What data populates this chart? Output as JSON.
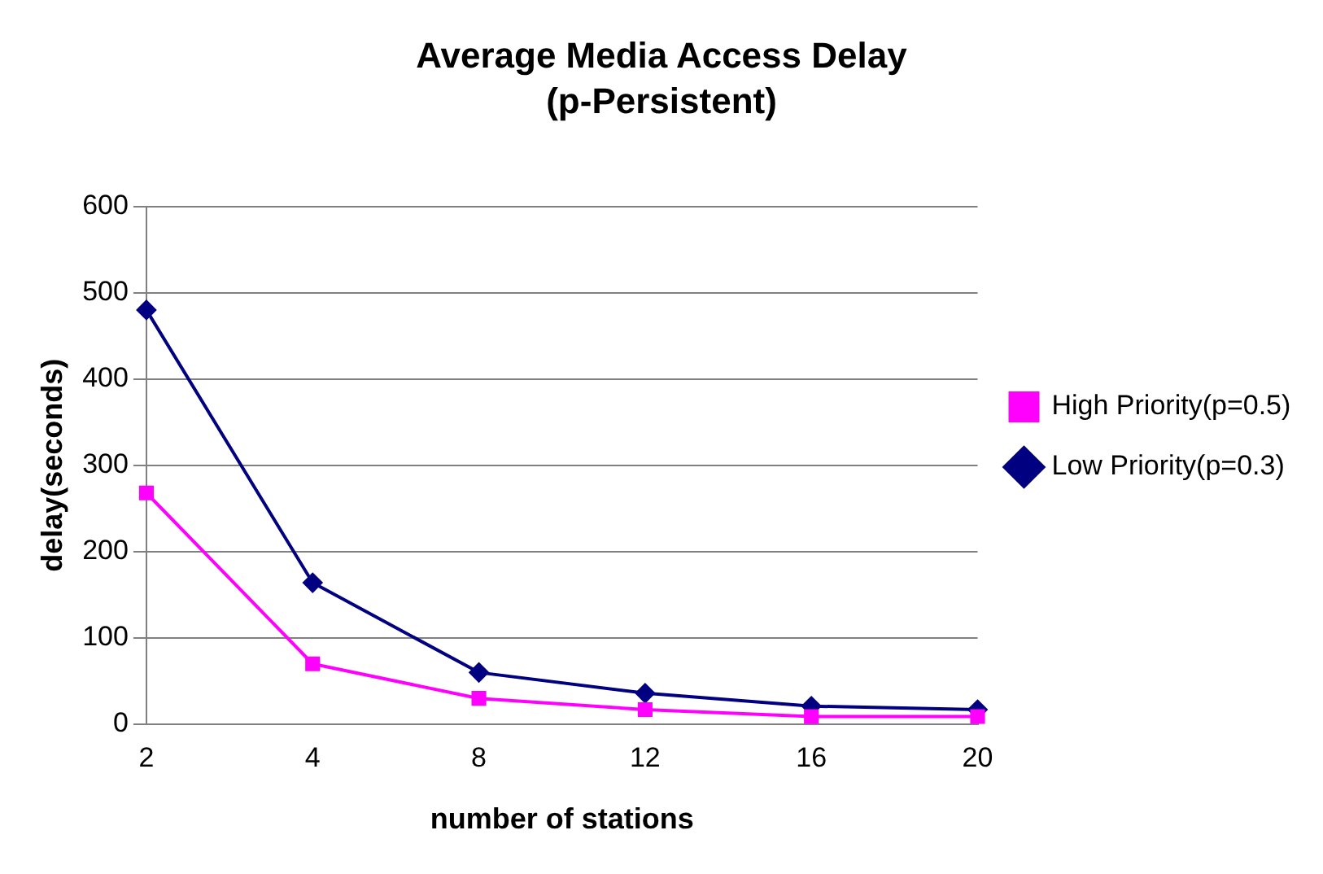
{
  "chart_data": {
    "type": "line",
    "title": "Average Media Access Delay",
    "subtitle": "(p-Persistent)",
    "xlabel": "number of stations",
    "ylabel": "delay(seconds)",
    "categories": [
      "2",
      "4",
      "8",
      "12",
      "16",
      "20"
    ],
    "series": [
      {
        "name": "Low Priority(p=0.3)",
        "color": "#000080",
        "marker": "diamond",
        "values": [
          480,
          164,
          60,
          36,
          21,
          17
        ]
      },
      {
        "name": "High Priority(p=0.5)",
        "color": "#ff00ff",
        "marker": "square",
        "values": [
          268,
          70,
          30,
          17,
          9,
          9
        ]
      }
    ],
    "ylim": [
      0,
      600
    ],
    "yticks": [
      0,
      100,
      200,
      300,
      400,
      500,
      600
    ],
    "grid": "y",
    "legend": "right"
  }
}
